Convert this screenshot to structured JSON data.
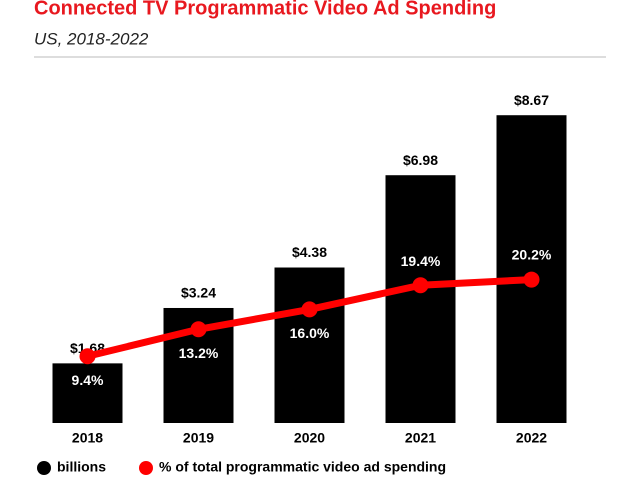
{
  "chart_data": {
    "type": "bar_line",
    "title": "Connected TV Programmatic Video Ad Spending",
    "subtitle": "US, 2018-2022",
    "categories": [
      "2018",
      "2019",
      "2020",
      "2021",
      "2022"
    ],
    "series": [
      {
        "name": "billions",
        "color": "#000000",
        "values": [
          1.68,
          3.24,
          4.38,
          6.98,
          8.67
        ],
        "value_labels": [
          "$1.68",
          "$3.24",
          "$4.38",
          "$6.98",
          "$8.67"
        ]
      },
      {
        "name": "% of total programmatic video ad spending",
        "color": "#ff0000",
        "axis": "y2",
        "values": [
          9.4,
          13.2,
          16.0,
          19.4,
          20.2
        ],
        "value_labels": [
          "9.4%",
          "13.2%",
          "16.0%",
          "19.4%",
          "20.2%"
        ]
      }
    ],
    "ylim": [
      0,
      10
    ],
    "y2lim": [
      0,
      50
    ],
    "legend": "bottom-left"
  }
}
